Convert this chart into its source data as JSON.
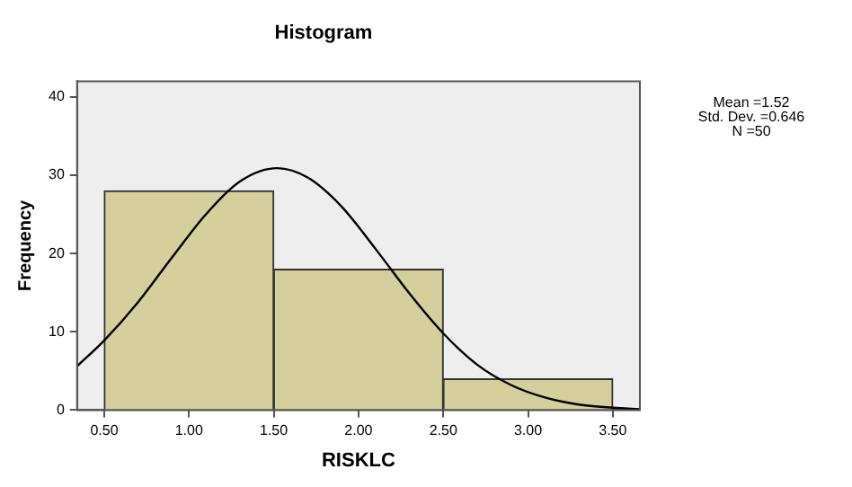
{
  "chart_data": {
    "type": "histogram",
    "title": "Histogram",
    "xlabel": "RISKLC",
    "ylabel": "Frequency",
    "bins": [
      0.5,
      1.5,
      2.5,
      3.5
    ],
    "values": [
      28,
      18,
      4
    ],
    "color": "#d4cf9b",
    "xlim": [
      0.34,
      3.66
    ],
    "xticks": [
      {
        "value": 0.5,
        "label": "0.50"
      },
      {
        "value": 1,
        "label": "1.00"
      },
      {
        "value": 1.5,
        "label": "1.50"
      },
      {
        "value": 2,
        "label": "2.00"
      },
      {
        "value": 2.5,
        "label": "2.50"
      },
      {
        "value": 3,
        "label": "3.00"
      },
      {
        "value": 3.5,
        "label": "3.50"
      }
    ],
    "ylim": [
      0,
      42
    ],
    "yticks": [
      0,
      10,
      20,
      30,
      40
    ],
    "marker": "none",
    "annotations": [
      "Mean =1.52",
      "Std. Dev. =0.646",
      "N =50"
    ],
    "series": [
      {
        "type": "line",
        "color": "#000000",
        "x": [
          0.34,
          0.5,
          0.7,
          0.9,
          1.1,
          1.3,
          1.52,
          1.7,
          1.9,
          2.1,
          2.3,
          2.5,
          2.7,
          2.9,
          3.1,
          3.3,
          3.5,
          3.66
        ],
        "values": [
          5.6,
          8.9,
          13.8,
          19.5,
          25.0,
          29.2,
          30.9,
          29.7,
          26.0,
          20.6,
          14.9,
          9.8,
          5.8,
          3.2,
          1.6,
          0.7,
          0.3,
          0.1
        ]
      }
    ]
  }
}
